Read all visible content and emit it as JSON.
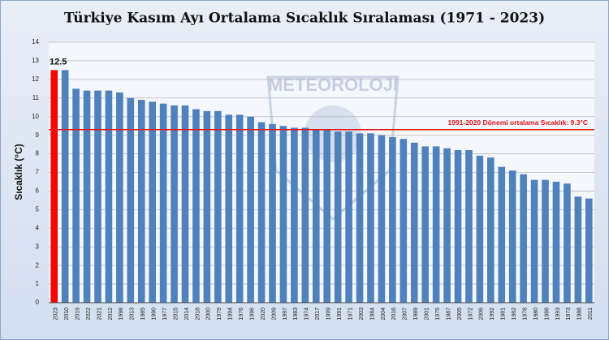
{
  "chart_data": {
    "type": "bar",
    "title": "Türkiye Kasım Ayı Ortalama Sıcaklık Sıralaması (1971 - 2023)",
    "y_label": "Sıcaklık (°C)",
    "watermark": "METEOROLOJİ",
    "categories": [
      "2023",
      "2010",
      "2019",
      "2022",
      "2021",
      "2012",
      "1998",
      "2013",
      "1985",
      "1990",
      "1977",
      "2015",
      "2014",
      "2018",
      "2000",
      "1979",
      "1994",
      "1976",
      "1996",
      "2020",
      "2009",
      "1997",
      "1983",
      "1974",
      "2017",
      "1999",
      "1991",
      "1971",
      "2003",
      "1984",
      "2004",
      "2016",
      "2007",
      "1989",
      "2001",
      "1975",
      "1987",
      "2005",
      "1972",
      "2006",
      "1992",
      "1981",
      "1982",
      "1978",
      "1980",
      "1986",
      "1993",
      "1973",
      "1988",
      "2011"
    ],
    "series": [
      {
        "values": [
          12.5,
          12.5,
          11.5,
          11.4,
          11.4,
          11.4,
          11.3,
          11.0,
          10.9,
          10.8,
          10.7,
          10.6,
          10.6,
          10.4,
          10.3,
          10.3,
          10.1,
          10.1,
          10.0,
          9.7,
          9.6,
          9.5,
          9.4,
          9.4,
          9.3,
          9.3,
          9.2,
          9.2,
          9.1,
          9.1,
          9.0,
          8.9,
          8.8,
          8.6,
          8.4,
          8.4,
          8.3,
          8.2,
          8.2,
          7.9,
          7.8,
          7.3,
          7.1,
          6.9,
          6.6,
          6.6,
          6.5,
          6.4,
          5.7,
          5.6
        ],
        "colors": [
          "#ff0000",
          "#4f81bd",
          "#4f81bd",
          "#4f81bd",
          "#4f81bd",
          "#4f81bd",
          "#4f81bd",
          "#4f81bd",
          "#4f81bd",
          "#4f81bd",
          "#4f81bd",
          "#4f81bd",
          "#4f81bd",
          "#4f81bd",
          "#4f81bd",
          "#4f81bd",
          "#4f81bd",
          "#4f81bd",
          "#4f81bd",
          "#4f81bd",
          "#4f81bd",
          "#4f81bd",
          "#4f81bd",
          "#4f81bd",
          "#4f81bd",
          "#4f81bd",
          "#4f81bd",
          "#4f81bd",
          "#4f81bd",
          "#4f81bd",
          "#4f81bd",
          "#4f81bd",
          "#4f81bd",
          "#4f81bd",
          "#4f81bd",
          "#4f81bd",
          "#4f81bd",
          "#4f81bd",
          "#4f81bd",
          "#4f81bd",
          "#4f81bd",
          "#4f81bd",
          "#4f81bd",
          "#4f81bd",
          "#4f81bd",
          "#4f81bd",
          "#4f81bd",
          "#4f81bd",
          "#4f81bd",
          "#4f81bd"
        ]
      }
    ],
    "labeled_bars": [
      0
    ],
    "reference_line": {
      "value": 9.3,
      "label": "1991-2020 Dönemi ortalama Sıcaklık: 9.3°C",
      "color": "#e0161b"
    },
    "ylim": [
      0,
      14
    ],
    "yticks": [
      0,
      1,
      2,
      3,
      4,
      5,
      6,
      7,
      8,
      9,
      10,
      11,
      12,
      13,
      14
    ],
    "grid": true
  }
}
